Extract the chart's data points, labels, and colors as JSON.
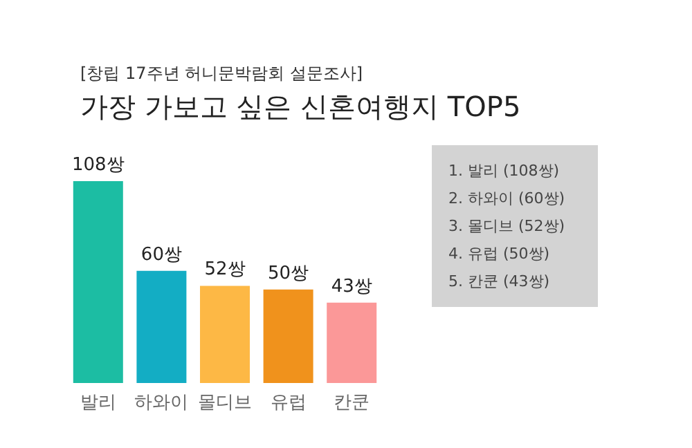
{
  "chart_data": {
    "type": "bar",
    "subtitle": "[창립 17주년 허니문박람회 설문조사]",
    "title": "가장 가보고 싶은 신혼여행지 TOP5",
    "categories": [
      "발리",
      "하와이",
      "몰디브",
      "유럽",
      "칸쿤"
    ],
    "values": [
      108,
      60,
      52,
      50,
      43
    ],
    "colors": [
      "#1cbda3",
      "#13adc4",
      "#fdb845",
      "#f0921c",
      "#fb9898"
    ],
    "value_labels": [
      "108쌍",
      "60쌍",
      "52쌍",
      "50쌍",
      "43쌍"
    ],
    "annotations": [
      "1. 발리 (108쌍)",
      "2. 하와이 (60쌍)",
      "3. 몰디브 (52쌍)",
      "4. 유럽 (50쌍)",
      "5. 칸쿤 (43쌍)"
    ],
    "grid": false
  }
}
